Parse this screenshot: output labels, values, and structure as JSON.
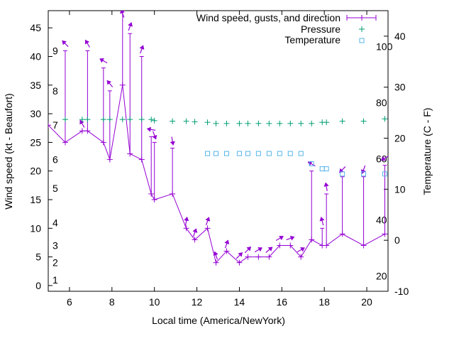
{
  "chart_data": {
    "type": "line",
    "xlabel": "Local time (America/NewYork)",
    "ylabel": "Wind speed (kt - Beaufort)",
    "y2label": "Temperature (C - F)",
    "xlim": [
      5,
      21
    ],
    "ylim": [
      -1,
      48
    ],
    "y2lim": [
      -10,
      45
    ],
    "grid": false,
    "legend_position": "top-right",
    "x_ticks": [
      6,
      8,
      10,
      12,
      14,
      16,
      18,
      20
    ],
    "y_ticks": [
      0,
      5,
      10,
      15,
      20,
      25,
      30,
      35,
      40,
      45
    ],
    "y2_ticks": [
      -10,
      0,
      10,
      20,
      30,
      40
    ],
    "beaufort_labels": [
      {
        "text": "1",
        "y": 1
      },
      {
        "text": "2",
        "y": 4
      },
      {
        "text": "3",
        "y": 7
      },
      {
        "text": "4",
        "y": 11
      },
      {
        "text": "5",
        "y": 17
      },
      {
        "text": "6",
        "y": 22
      },
      {
        "text": "7",
        "y": 28
      },
      {
        "text": "8",
        "y": 34
      },
      {
        "text": "9",
        "y": 41
      }
    ],
    "fahrenheit_labels": [
      {
        "text": "20",
        "y2": -7
      },
      {
        "text": "40",
        "y2": 4
      },
      {
        "text": "60",
        "y2": 16
      },
      {
        "text": "80",
        "y2": 27
      },
      {
        "text": "100",
        "y2": 38
      }
    ],
    "colors": {
      "wind": "#9400d3",
      "pressure": "#009e73",
      "temperature": "#56b4e9"
    },
    "series": [
      {
        "name": "Wind speed, gusts, and direction",
        "x": [
          5,
          5.8,
          6.6,
          6.85,
          7.6,
          7.9,
          8.5,
          8.85,
          9.4,
          9.85,
          10.0,
          10.85,
          11.5,
          11.9,
          12.5,
          12.9,
          13.4,
          14.0,
          14.4,
          14.9,
          15.4,
          15.9,
          16.4,
          16.9,
          17.4,
          17.9,
          18.1,
          18.85,
          19.85,
          20.85
        ],
        "values": [
          28,
          25,
          27,
          27,
          25,
          22,
          35,
          23,
          22,
          16,
          15,
          16,
          10,
          8,
          10,
          4,
          6,
          4,
          5,
          5,
          5,
          7,
          7,
          5,
          8,
          7,
          7,
          9,
          7,
          9
        ],
        "gusts": [
          null,
          41,
          null,
          41,
          38,
          34,
          48,
          44,
          40,
          26,
          25,
          24,
          10,
          8,
          10,
          4,
          6,
          4,
          5,
          5,
          5,
          7,
          7,
          5,
          20,
          10,
          16,
          19,
          19,
          21
        ],
        "direction_deg": [
          null,
          315,
          330,
          330,
          300,
          320,
          340,
          20,
          20,
          280,
          160,
          170,
          10,
          20,
          20,
          340,
          20,
          45,
          45,
          60,
          50,
          60,
          70,
          60,
          300,
          345,
          350,
          225,
          200,
          240
        ]
      },
      {
        "name": "Pressure",
        "x": [
          5.8,
          6.6,
          6.85,
          7.6,
          7.9,
          8.5,
          8.85,
          9.4,
          9.85,
          10.0,
          10.85,
          11.5,
          11.9,
          12.5,
          12.9,
          13.4,
          14.0,
          14.4,
          14.9,
          15.4,
          15.9,
          16.4,
          16.9,
          17.4,
          17.9,
          18.1,
          18.85,
          19.85,
          20.85
        ],
        "values": [
          29.0,
          29.0,
          29.0,
          29.0,
          29.0,
          29.0,
          29.0,
          29.0,
          29.0,
          28.8,
          28.7,
          28.7,
          28.6,
          28.5,
          28.3,
          28.3,
          28.3,
          28.3,
          28.3,
          28.3,
          28.3,
          28.3,
          28.3,
          28.3,
          28.5,
          28.5,
          28.7,
          28.7,
          29.1
        ]
      },
      {
        "name": "Temperature",
        "x": [
          12.5,
          12.9,
          13.4,
          14.0,
          14.4,
          14.9,
          15.4,
          15.9,
          16.4,
          16.9,
          17.4,
          17.9,
          18.1,
          18.85,
          19.85,
          20.85
        ],
        "values": [
          17,
          17,
          17,
          17,
          17,
          17,
          17,
          17,
          17,
          17,
          15,
          14,
          14,
          13,
          13,
          13
        ]
      }
    ]
  }
}
